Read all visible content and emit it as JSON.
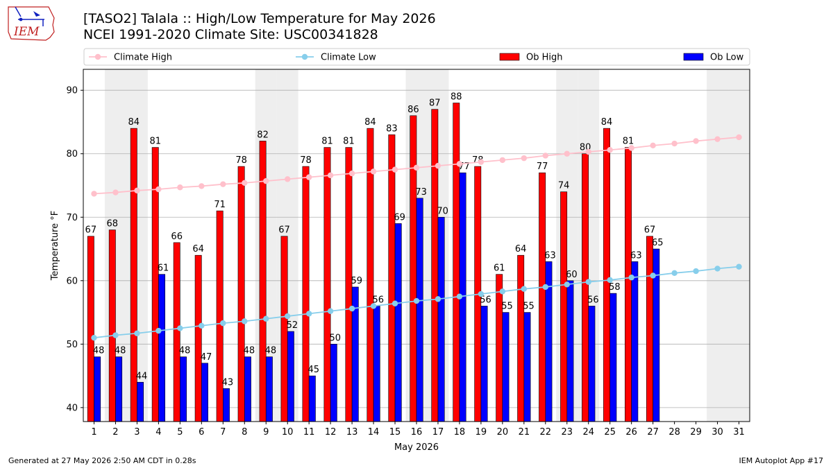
{
  "header": {
    "title_line1": "[TASO2] Talala :: High/Low Temperature for May 2026",
    "title_line2": "NCEI 1991-2020 Climate Site: USC00341828"
  },
  "logo": {
    "text": "IEM"
  },
  "footer": {
    "left": "Generated at 27 May 2026 2:50 AM CDT in 0.28s",
    "right": "IEM Autoplot App #17"
  },
  "colors": {
    "ob_high": "#ff0000",
    "ob_low": "#0000ff",
    "climate_high": "#ffc0cb",
    "climate_low": "#87ceeb",
    "weekend_band": "#eeeeee",
    "grid": "#b0b0b0"
  },
  "chart_data": {
    "type": "bar",
    "title": "[TASO2] Talala :: High/Low Temperature for May 2026",
    "subtitle": "NCEI 1991-2020 Climate Site: USC00341828",
    "xlabel": "May 2026",
    "ylabel": "Temperature °F",
    "ylim": [
      37.8,
      93.3
    ],
    "yticks": [
      40,
      50,
      60,
      70,
      80,
      90
    ],
    "grid": "horizontal",
    "legend_position": "top",
    "legend": [
      "Climate High",
      "Climate Low",
      "Ob High",
      "Ob Low"
    ],
    "weekend_days": [
      2,
      3,
      9,
      10,
      16,
      17,
      23,
      24,
      30,
      31
    ],
    "days": [
      1,
      2,
      3,
      4,
      5,
      6,
      7,
      8,
      9,
      10,
      11,
      12,
      13,
      14,
      15,
      16,
      17,
      18,
      19,
      20,
      21,
      22,
      23,
      24,
      25,
      26,
      27,
      28,
      29,
      30,
      31
    ],
    "series": [
      {
        "name": "Ob High",
        "kind": "bar",
        "values": [
          67,
          68,
          84,
          81,
          66,
          64,
          71,
          78,
          82,
          67,
          78,
          81,
          81,
          84,
          83,
          86,
          87,
          88,
          78,
          61,
          64,
          77,
          74,
          80,
          84,
          81,
          67,
          null,
          null,
          null,
          null
        ]
      },
      {
        "name": "Ob Low",
        "kind": "bar",
        "values": [
          48,
          48,
          44,
          61,
          48,
          47,
          43,
          48,
          48,
          52,
          45,
          50,
          59,
          56,
          69,
          73,
          70,
          77,
          56,
          55,
          55,
          63,
          60,
          56,
          58,
          63,
          65,
          null,
          null,
          null,
          null
        ]
      },
      {
        "name": "Climate High",
        "kind": "line",
        "values": [
          73.7,
          73.9,
          74.2,
          74.4,
          74.7,
          74.9,
          75.2,
          75.4,
          75.7,
          76.0,
          76.3,
          76.6,
          76.9,
          77.2,
          77.5,
          77.8,
          78.1,
          78.4,
          78.7,
          79.0,
          79.3,
          79.7,
          80.0,
          80.3,
          80.6,
          80.9,
          81.3,
          81.6,
          82.0,
          82.3,
          82.6
        ]
      },
      {
        "name": "Climate Low",
        "kind": "line",
        "values": [
          51.0,
          51.4,
          51.7,
          52.1,
          52.5,
          52.9,
          53.3,
          53.6,
          54.0,
          54.4,
          54.8,
          55.2,
          55.6,
          56.0,
          56.4,
          56.8,
          57.1,
          57.5,
          57.9,
          58.3,
          58.7,
          59.0,
          59.4,
          59.8,
          60.1,
          60.5,
          60.8,
          61.2,
          61.5,
          61.9,
          62.2
        ]
      }
    ]
  }
}
